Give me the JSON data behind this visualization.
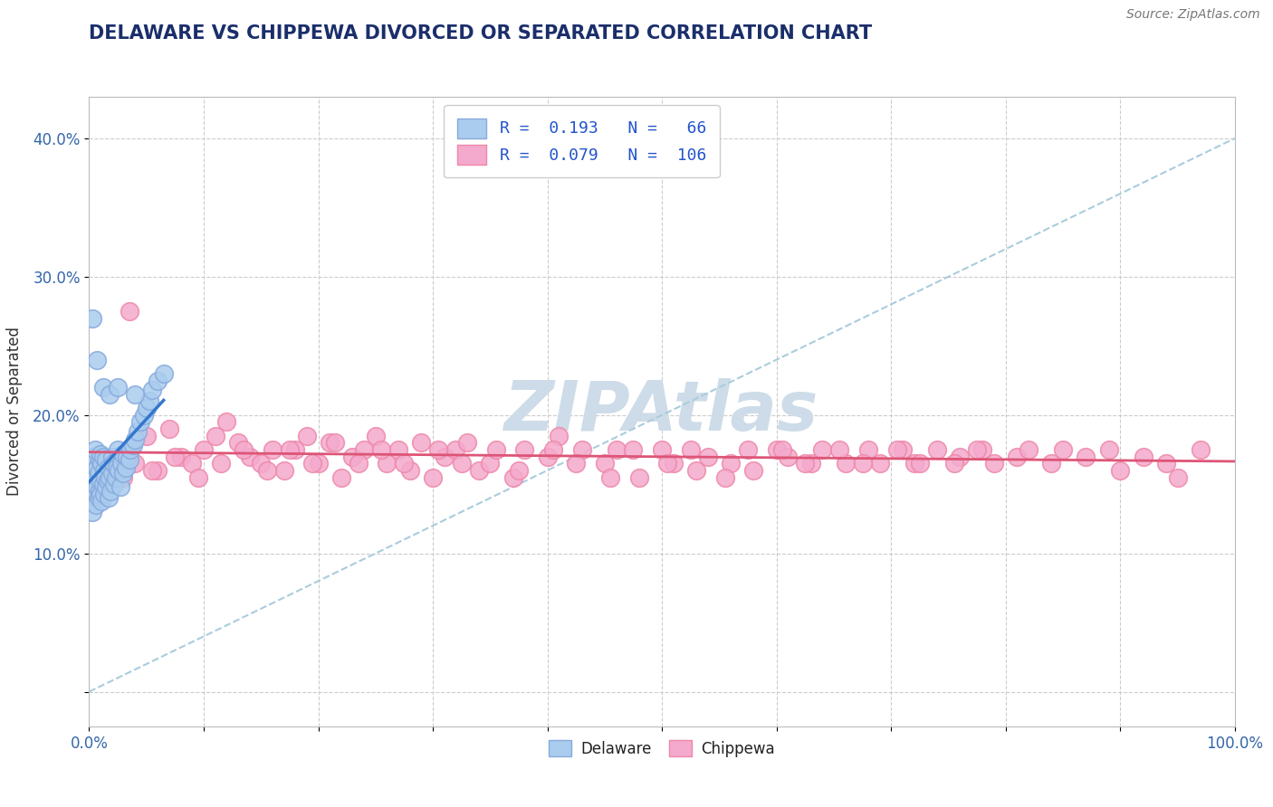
{
  "title": "DELAWARE VS CHIPPEWA DIVORCED OR SEPARATED CORRELATION CHART",
  "source_text": "Source: ZipAtlas.com",
  "ylabel": "Divorced or Separated",
  "xlim": [
    0.0,
    1.0
  ],
  "ylim": [
    -0.025,
    0.43
  ],
  "xtick_pos": [
    0.0,
    0.1,
    0.2,
    0.3,
    0.4,
    0.5,
    0.6,
    0.7,
    0.8,
    0.9,
    1.0
  ],
  "xtick_labels": [
    "0.0%",
    "",
    "",
    "",
    "",
    "",
    "",
    "",
    "",
    "",
    "100.0%"
  ],
  "ytick_pos": [
    0.0,
    0.1,
    0.2,
    0.3,
    0.4
  ],
  "ytick_labels": [
    "",
    "10.0%",
    "20.0%",
    "30.0%",
    "40.0%"
  ],
  "delaware_R": 0.193,
  "delaware_N": 66,
  "chippewa_R": 0.079,
  "chippewa_N": 106,
  "delaware_color": "#aaccee",
  "chippewa_color": "#f4aacc",
  "delaware_edge_color": "#88aadd",
  "chippewa_edge_color": "#ee88aa",
  "delaware_line_color": "#3377cc",
  "chippewa_line_color": "#dd5577",
  "ref_line_color": "#aaccdd",
  "watermark_color": "#cddce8",
  "background_color": "#ffffff",
  "title_color": "#1a2e6b",
  "source_color": "#777777",
  "legend_label1": "R =  0.193   N =   66",
  "legend_label2": "R =  0.079   N =  106",
  "delaware_x": [
    0.001,
    0.002,
    0.003,
    0.003,
    0.004,
    0.004,
    0.005,
    0.005,
    0.005,
    0.006,
    0.006,
    0.007,
    0.007,
    0.008,
    0.008,
    0.009,
    0.009,
    0.01,
    0.01,
    0.01,
    0.011,
    0.011,
    0.012,
    0.012,
    0.013,
    0.013,
    0.014,
    0.015,
    0.015,
    0.016,
    0.017,
    0.017,
    0.018,
    0.019,
    0.02,
    0.02,
    0.021,
    0.022,
    0.023,
    0.024,
    0.025,
    0.026,
    0.027,
    0.028,
    0.03,
    0.03,
    0.032,
    0.033,
    0.035,
    0.036,
    0.038,
    0.04,
    0.042,
    0.045,
    0.048,
    0.05,
    0.053,
    0.055,
    0.06,
    0.065,
    0.003,
    0.007,
    0.012,
    0.018,
    0.025,
    0.04
  ],
  "delaware_y": [
    0.155,
    0.14,
    0.13,
    0.165,
    0.15,
    0.17,
    0.145,
    0.16,
    0.175,
    0.135,
    0.155,
    0.148,
    0.162,
    0.14,
    0.158,
    0.145,
    0.168,
    0.152,
    0.142,
    0.172,
    0.138,
    0.165,
    0.15,
    0.17,
    0.143,
    0.16,
    0.155,
    0.148,
    0.168,
    0.153,
    0.14,
    0.162,
    0.155,
    0.145,
    0.17,
    0.158,
    0.165,
    0.15,
    0.155,
    0.162,
    0.175,
    0.16,
    0.148,
    0.165,
    0.172,
    0.158,
    0.162,
    0.17,
    0.168,
    0.175,
    0.178,
    0.182,
    0.188,
    0.195,
    0.2,
    0.205,
    0.21,
    0.218,
    0.225,
    0.23,
    0.27,
    0.24,
    0.22,
    0.215,
    0.22,
    0.215
  ],
  "chippewa_x": [
    0.02,
    0.025,
    0.035,
    0.04,
    0.05,
    0.06,
    0.07,
    0.08,
    0.09,
    0.1,
    0.11,
    0.12,
    0.13,
    0.14,
    0.15,
    0.16,
    0.17,
    0.18,
    0.19,
    0.2,
    0.21,
    0.22,
    0.23,
    0.24,
    0.25,
    0.26,
    0.27,
    0.28,
    0.29,
    0.3,
    0.31,
    0.32,
    0.33,
    0.34,
    0.35,
    0.37,
    0.38,
    0.4,
    0.41,
    0.43,
    0.45,
    0.46,
    0.48,
    0.5,
    0.51,
    0.53,
    0.54,
    0.56,
    0.58,
    0.6,
    0.61,
    0.63,
    0.64,
    0.66,
    0.68,
    0.69,
    0.71,
    0.72,
    0.74,
    0.76,
    0.78,
    0.79,
    0.81,
    0.82,
    0.84,
    0.85,
    0.87,
    0.89,
    0.9,
    0.92,
    0.94,
    0.95,
    0.97,
    0.03,
    0.055,
    0.075,
    0.095,
    0.115,
    0.135,
    0.155,
    0.175,
    0.195,
    0.215,
    0.235,
    0.255,
    0.275,
    0.305,
    0.325,
    0.355,
    0.375,
    0.405,
    0.425,
    0.455,
    0.475,
    0.505,
    0.525,
    0.555,
    0.575,
    0.605,
    0.625,
    0.655,
    0.675,
    0.705,
    0.725,
    0.755,
    0.775
  ],
  "chippewa_y": [
    0.155,
    0.16,
    0.275,
    0.165,
    0.185,
    0.16,
    0.19,
    0.17,
    0.165,
    0.175,
    0.185,
    0.195,
    0.18,
    0.17,
    0.165,
    0.175,
    0.16,
    0.175,
    0.185,
    0.165,
    0.18,
    0.155,
    0.17,
    0.175,
    0.185,
    0.165,
    0.175,
    0.16,
    0.18,
    0.155,
    0.17,
    0.175,
    0.18,
    0.16,
    0.165,
    0.155,
    0.175,
    0.17,
    0.185,
    0.175,
    0.165,
    0.175,
    0.155,
    0.175,
    0.165,
    0.16,
    0.17,
    0.165,
    0.16,
    0.175,
    0.17,
    0.165,
    0.175,
    0.165,
    0.175,
    0.165,
    0.175,
    0.165,
    0.175,
    0.17,
    0.175,
    0.165,
    0.17,
    0.175,
    0.165,
    0.175,
    0.17,
    0.175,
    0.16,
    0.17,
    0.165,
    0.155,
    0.175,
    0.155,
    0.16,
    0.17,
    0.155,
    0.165,
    0.175,
    0.16,
    0.175,
    0.165,
    0.18,
    0.165,
    0.175,
    0.165,
    0.175,
    0.165,
    0.175,
    0.16,
    0.175,
    0.165,
    0.155,
    0.175,
    0.165,
    0.175,
    0.155,
    0.175,
    0.175,
    0.165,
    0.175,
    0.165,
    0.175,
    0.165,
    0.165,
    0.175
  ]
}
